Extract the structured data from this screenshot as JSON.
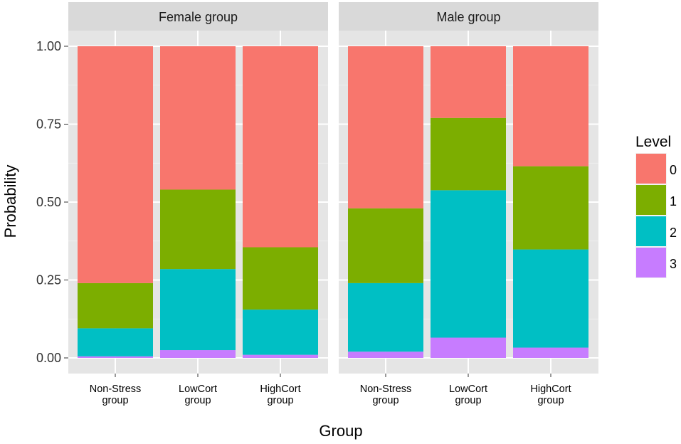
{
  "chart_data": {
    "type": "bar",
    "stacked": true,
    "xlabel": "Group",
    "ylabel": "Probability",
    "ylim": [
      0,
      1
    ],
    "y_ticks": [
      "0.00",
      "0.25",
      "0.50",
      "0.75",
      "1.00"
    ],
    "y_tick_values": [
      0,
      0.25,
      0.5,
      0.75,
      1
    ],
    "categories": [
      [
        "Non-Stress",
        "group"
      ],
      [
        "LowCort",
        "group"
      ],
      [
        "HighCort",
        "group"
      ]
    ],
    "legend": {
      "title": "Level",
      "placement": "right",
      "entries": [
        {
          "label": "0",
          "color": "#F8766D"
        },
        {
          "label": "1",
          "color": "#7CAE00"
        },
        {
          "label": "2",
          "color": "#00BFC4"
        },
        {
          "label": "3",
          "color": "#C77CFF"
        }
      ]
    },
    "panels": [
      {
        "title": "Female group",
        "series": [
          {
            "name": "3",
            "values": [
              0.005,
              0.025,
              0.01
            ]
          },
          {
            "name": "2",
            "values": [
              0.09,
              0.26,
              0.145
            ]
          },
          {
            "name": "1",
            "values": [
              0.145,
              0.255,
              0.2
            ]
          },
          {
            "name": "0",
            "values": [
              0.76,
              0.46,
              0.645
            ]
          }
        ]
      },
      {
        "title": "Male group",
        "series": [
          {
            "name": "3",
            "values": [
              0.02,
              0.065,
              0.033
            ]
          },
          {
            "name": "2",
            "values": [
              0.22,
              0.473,
              0.315
            ]
          },
          {
            "name": "1",
            "values": [
              0.24,
              0.232,
              0.267
            ]
          },
          {
            "name": "0",
            "values": [
              0.52,
              0.23,
              0.385
            ]
          }
        ]
      }
    ]
  }
}
